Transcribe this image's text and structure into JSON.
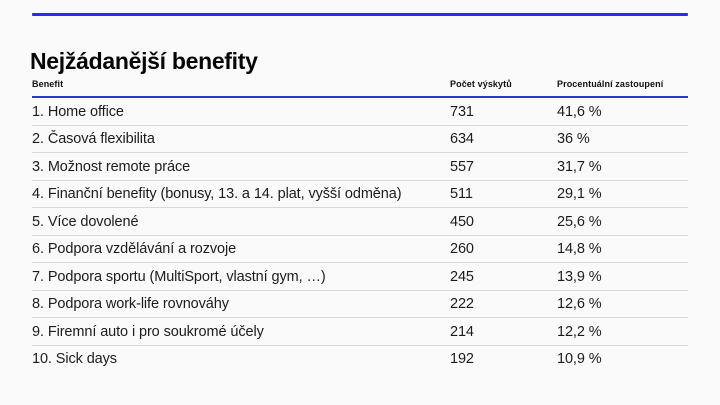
{
  "page": {
    "title": "Nejžádanější benefity"
  },
  "accent_color": "#2b2ee8",
  "divider_color": "#d9d9d9",
  "table": {
    "columns": [
      "Benefit",
      "Počet výskytů",
      "Procentuální zastoupení"
    ],
    "rows": [
      {
        "benefit": "1. Home office",
        "count": "731",
        "percent": "41,6 %"
      },
      {
        "benefit": "2. Časová flexibilita",
        "count": "634",
        "percent": "36 %"
      },
      {
        "benefit": "3. Možnost remote práce",
        "count": "557",
        "percent": "31,7 %"
      },
      {
        "benefit": "4. Finanční benefity (bonusy, 13. a 14. plat, vyšší odměna)",
        "count": "511",
        "percent": "29,1 %"
      },
      {
        "benefit": "5. Více dovolené",
        "count": "450",
        "percent": "25,6 %"
      },
      {
        "benefit": "6. Podpora vzdělávání a rozvoje",
        "count": "260",
        "percent": "14,8 %"
      },
      {
        "benefit": "7. Podpora sportu (MultiSport, vlastní gym, …)",
        "count": "245",
        "percent": "13,9 %"
      },
      {
        "benefit": "8. Podpora work-life rovnováhy",
        "count": "222",
        "percent": "12,6 %"
      },
      {
        "benefit": "9. Firemní auto i pro soukromé účely",
        "count": "214",
        "percent": "12,2 %"
      },
      {
        "benefit": "10. Sick days",
        "count": "192",
        "percent": "10,9 %"
      }
    ]
  }
}
